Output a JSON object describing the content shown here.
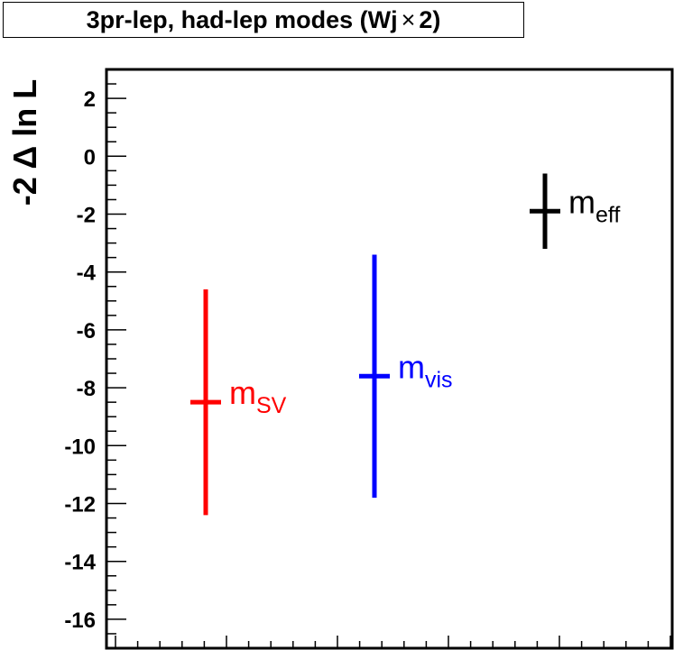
{
  "title": {
    "prefix": "3pr-lep, had-lep modes (Wj",
    "times": "×",
    "suffix": " 2)"
  },
  "chart_data": {
    "type": "scatter",
    "title": "3pr-lep, had-lep modes (Wj× 2)",
    "xlabel": "",
    "ylabel": "-2 Δ ln L",
    "ylim": [
      -17,
      3
    ],
    "yticks": [
      2,
      0,
      -2,
      -4,
      -6,
      -8,
      -10,
      -12,
      -14,
      -16
    ],
    "x_axis_labels": false,
    "grid": false,
    "points": [
      {
        "label_main": "m",
        "label_sub": "SV",
        "x": 1,
        "y": -8.5,
        "y_low": -12.4,
        "y_high": -4.6,
        "color": "#ff0000"
      },
      {
        "label_main": "m",
        "label_sub": "vis",
        "x": 2,
        "y": -7.6,
        "y_low": -11.8,
        "y_high": -3.4,
        "color": "#0000ff"
      },
      {
        "label_main": "m",
        "label_sub": "eff",
        "x": 3,
        "y": -1.9,
        "y_low": -3.2,
        "y_high": -0.6,
        "color": "#000000"
      }
    ]
  }
}
